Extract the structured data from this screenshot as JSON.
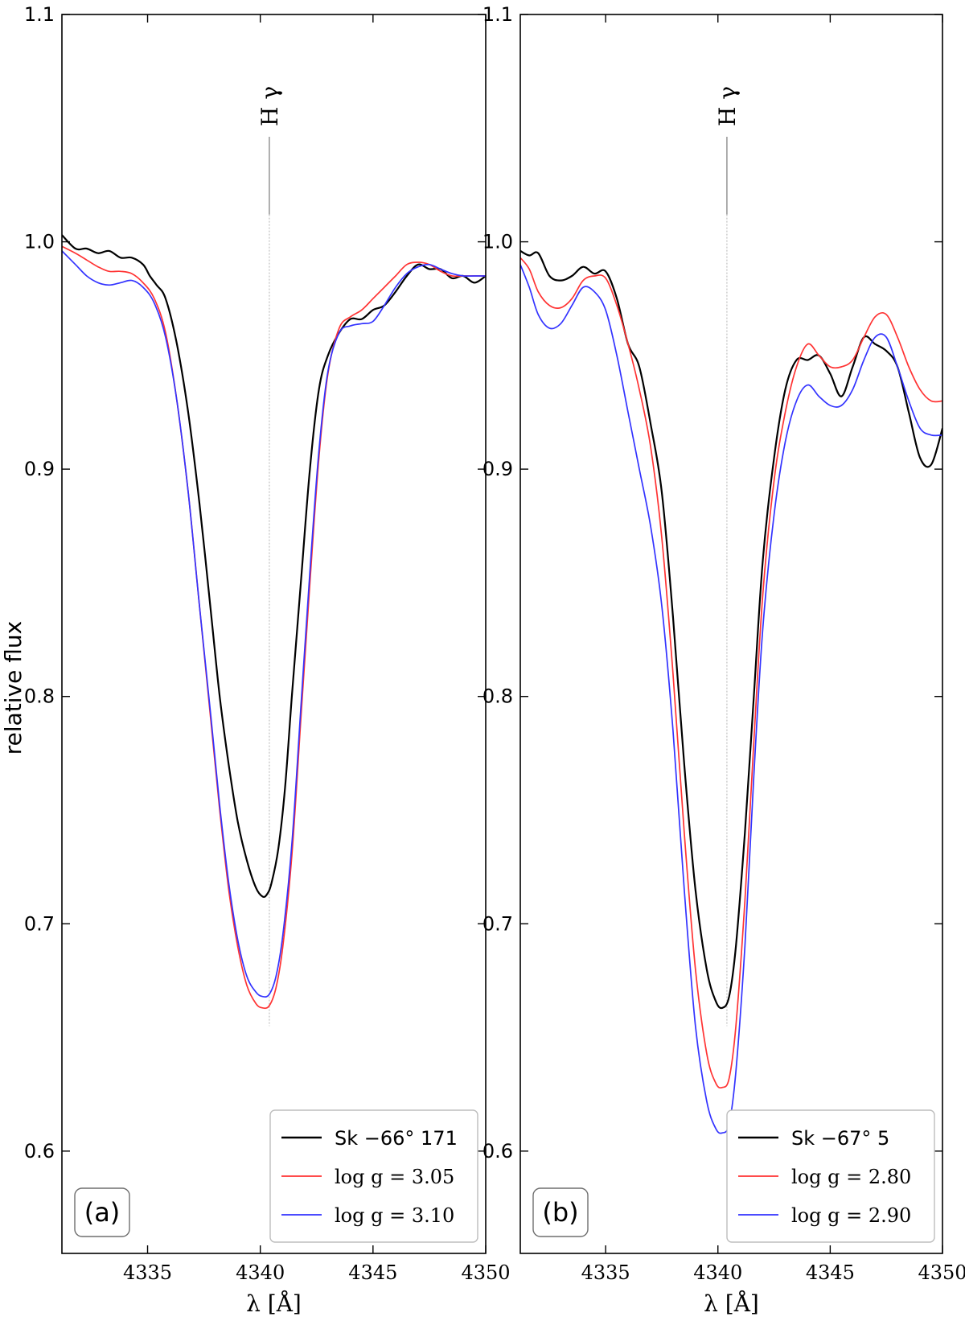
{
  "ylabel": "relative flux",
  "chart_data": [
    {
      "type": "line",
      "panel": "(a)",
      "xlabel": "λ [Å]",
      "ylabel": "relative flux",
      "xlim": [
        4331.2,
        4350
      ],
      "ylim": [
        0.555,
        1.1
      ],
      "xticks": [
        4335,
        4340,
        4345,
        4350
      ],
      "yticks": [
        0.6,
        0.7,
        0.8,
        0.9,
        1.0,
        1.1
      ],
      "annotation": {
        "text": "H γ",
        "x": 4340.4
      },
      "legend_position": "lower-right",
      "series": [
        {
          "name": "Sk −66° 171",
          "color": "#000000",
          "x": [
            4331.2,
            4331.8,
            4332.3,
            4332.8,
            4333.3,
            4333.8,
            4334.3,
            4334.8,
            4335.1,
            4335.4,
            4335.8,
            4336.3,
            4336.8,
            4337.3,
            4337.8,
            4338.2,
            4338.6,
            4339.0,
            4339.4,
            4339.8,
            4340.1,
            4340.3,
            4340.5,
            4340.8,
            4341.1,
            4341.4,
            4341.8,
            4342.2,
            4342.6,
            4343.0,
            4343.5,
            4344.0,
            4344.5,
            4345.0,
            4345.5,
            4346.0,
            4346.5,
            4347.0,
            4347.5,
            4348.0,
            4348.5,
            4349.0,
            4349.5,
            4350.0
          ],
          "y": [
            1.003,
            0.997,
            0.997,
            0.995,
            0.996,
            0.993,
            0.993,
            0.99,
            0.985,
            0.981,
            0.975,
            0.955,
            0.925,
            0.885,
            0.838,
            0.8,
            0.77,
            0.745,
            0.728,
            0.716,
            0.712,
            0.713,
            0.718,
            0.733,
            0.76,
            0.8,
            0.85,
            0.9,
            0.935,
            0.95,
            0.96,
            0.966,
            0.966,
            0.97,
            0.972,
            0.978,
            0.985,
            0.99,
            0.988,
            0.988,
            0.984,
            0.985,
            0.982,
            0.985
          ]
        },
        {
          "name": "log g = 3.05",
          "color": "#ff3333",
          "x": [
            4331.2,
            4331.8,
            4332.3,
            4332.8,
            4333.3,
            4333.8,
            4334.3,
            4334.8,
            4335.3,
            4335.8,
            4336.3,
            4336.8,
            4337.3,
            4337.8,
            4338.2,
            4338.6,
            4339.0,
            4339.4,
            4339.8,
            4340.1,
            4340.4,
            4340.7,
            4341.0,
            4341.4,
            4341.8,
            4342.2,
            4342.6,
            4343.0,
            4343.5,
            4344.0,
            4344.5,
            4345.0,
            4345.5,
            4346.0,
            4346.5,
            4347.0,
            4347.5,
            4348.0,
            4348.5,
            4349.0,
            4349.5,
            4350.0
          ],
          "y": [
            0.998,
            0.995,
            0.992,
            0.989,
            0.987,
            0.987,
            0.986,
            0.982,
            0.975,
            0.96,
            0.93,
            0.89,
            0.84,
            0.79,
            0.75,
            0.715,
            0.69,
            0.673,
            0.665,
            0.663,
            0.664,
            0.672,
            0.69,
            0.73,
            0.79,
            0.85,
            0.905,
            0.942,
            0.962,
            0.967,
            0.97,
            0.975,
            0.98,
            0.985,
            0.99,
            0.991,
            0.99,
            0.987,
            0.985,
            0.985,
            0.985,
            0.985
          ]
        },
        {
          "name": "log g = 3.10",
          "color": "#3333ff",
          "x": [
            4331.2,
            4331.8,
            4332.3,
            4332.8,
            4333.3,
            4333.8,
            4334.3,
            4334.8,
            4335.3,
            4335.8,
            4336.3,
            4336.8,
            4337.3,
            4337.8,
            4338.2,
            4338.6,
            4339.0,
            4339.4,
            4339.8,
            4340.1,
            4340.4,
            4340.7,
            4341.0,
            4341.4,
            4341.8,
            4342.2,
            4342.6,
            4343.0,
            4343.5,
            4344.0,
            4344.5,
            4345.0,
            4345.5,
            4346.0,
            4346.5,
            4347.0,
            4347.5,
            4348.0,
            4348.5,
            4349.0,
            4349.5,
            4350.0
          ],
          "y": [
            0.996,
            0.99,
            0.985,
            0.982,
            0.981,
            0.982,
            0.983,
            0.98,
            0.973,
            0.958,
            0.93,
            0.89,
            0.84,
            0.792,
            0.752,
            0.718,
            0.693,
            0.677,
            0.67,
            0.668,
            0.669,
            0.677,
            0.695,
            0.735,
            0.795,
            0.855,
            0.908,
            0.943,
            0.96,
            0.963,
            0.964,
            0.965,
            0.972,
            0.98,
            0.986,
            0.989,
            0.99,
            0.988,
            0.986,
            0.985,
            0.985,
            0.985
          ]
        }
      ]
    },
    {
      "type": "line",
      "panel": "(b)",
      "xlabel": "λ [Å]",
      "ylabel": "",
      "xlim": [
        4331.2,
        4350
      ],
      "ylim": [
        0.555,
        1.1
      ],
      "xticks": [
        4335,
        4340,
        4345,
        4350
      ],
      "yticks": [
        0.6,
        0.7,
        0.8,
        0.9,
        1.0,
        1.1
      ],
      "annotation": {
        "text": "H γ",
        "x": 4340.4
      },
      "legend_position": "lower-right",
      "series": [
        {
          "name": "Sk −67° 5",
          "color": "#000000",
          "x": [
            4331.2,
            4331.6,
            4332.0,
            4332.5,
            4333.0,
            4333.5,
            4334.0,
            4334.5,
            4335.0,
            4335.5,
            4336.0,
            4336.5,
            4337.0,
            4337.5,
            4338.0,
            4338.5,
            4339.0,
            4339.5,
            4339.9,
            4340.2,
            4340.5,
            4340.8,
            4341.2,
            4341.6,
            4342.0,
            4342.5,
            4343.0,
            4343.5,
            4344.0,
            4344.5,
            4345.0,
            4345.5,
            4346.0,
            4346.5,
            4347.0,
            4347.5,
            4348.0,
            4348.5,
            4349.0,
            4349.5,
            4350.0
          ],
          "y": [
            0.996,
            0.994,
            0.995,
            0.985,
            0.983,
            0.985,
            0.989,
            0.986,
            0.987,
            0.975,
            0.955,
            0.945,
            0.92,
            0.89,
            0.835,
            0.77,
            0.715,
            0.68,
            0.666,
            0.663,
            0.668,
            0.69,
            0.74,
            0.8,
            0.86,
            0.905,
            0.935,
            0.948,
            0.948,
            0.95,
            0.942,
            0.932,
            0.945,
            0.958,
            0.955,
            0.952,
            0.945,
            0.925,
            0.905,
            0.902,
            0.918
          ]
        },
        {
          "name": "log g = 2.80",
          "color": "#ff3333",
          "x": [
            4331.2,
            4331.6,
            4332.0,
            4332.5,
            4333.0,
            4333.5,
            4334.0,
            4334.5,
            4335.0,
            4335.5,
            4336.0,
            4336.5,
            4337.0,
            4337.5,
            4338.0,
            4338.5,
            4339.0,
            4339.5,
            4339.9,
            4340.2,
            4340.5,
            4340.8,
            4341.2,
            4341.6,
            4342.0,
            4342.5,
            4343.0,
            4343.5,
            4344.0,
            4344.5,
            4345.0,
            4345.5,
            4346.0,
            4346.5,
            4347.0,
            4347.5,
            4348.0,
            4348.5,
            4349.0,
            4349.5,
            4350.0
          ],
          "y": [
            0.993,
            0.988,
            0.978,
            0.972,
            0.971,
            0.975,
            0.983,
            0.985,
            0.984,
            0.972,
            0.955,
            0.935,
            0.91,
            0.87,
            0.81,
            0.74,
            0.68,
            0.643,
            0.63,
            0.628,
            0.632,
            0.655,
            0.71,
            0.78,
            0.845,
            0.895,
            0.925,
            0.945,
            0.955,
            0.95,
            0.945,
            0.945,
            0.948,
            0.958,
            0.967,
            0.968,
            0.958,
            0.945,
            0.935,
            0.93,
            0.93
          ]
        },
        {
          "name": "log g = 2.90",
          "color": "#3333ff",
          "x": [
            4331.2,
            4331.6,
            4332.0,
            4332.5,
            4333.0,
            4333.5,
            4334.0,
            4334.5,
            4335.0,
            4335.5,
            4336.0,
            4336.5,
            4337.0,
            4337.5,
            4338.0,
            4338.5,
            4339.0,
            4339.5,
            4339.9,
            4340.2,
            4340.5,
            4340.8,
            4341.2,
            4341.6,
            4342.0,
            4342.5,
            4343.0,
            4343.5,
            4344.0,
            4344.5,
            4345.0,
            4345.5,
            4346.0,
            4346.5,
            4347.0,
            4347.5,
            4348.0,
            4348.5,
            4349.0,
            4349.5,
            4350.0
          ],
          "y": [
            0.99,
            0.98,
            0.968,
            0.962,
            0.964,
            0.972,
            0.98,
            0.978,
            0.97,
            0.95,
            0.925,
            0.9,
            0.875,
            0.84,
            0.785,
            0.715,
            0.655,
            0.622,
            0.61,
            0.608,
            0.612,
            0.635,
            0.69,
            0.765,
            0.83,
            0.88,
            0.912,
            0.93,
            0.937,
            0.932,
            0.928,
            0.928,
            0.935,
            0.948,
            0.958,
            0.958,
            0.945,
            0.93,
            0.918,
            0.915,
            0.915
          ]
        }
      ]
    }
  ]
}
